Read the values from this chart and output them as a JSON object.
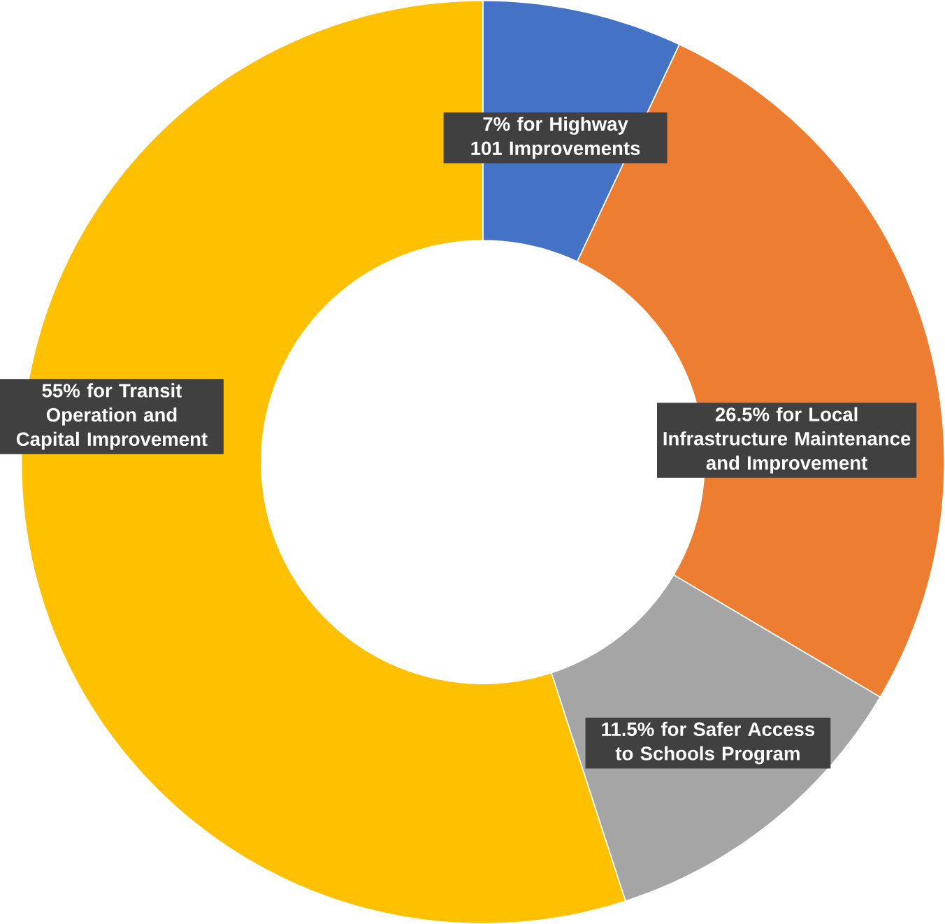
{
  "chart_data": {
    "type": "donut",
    "categories": [
      "for Highway 101 Improvements",
      "for Local Infrastructure Maintenance and Improvement",
      "for Safer Access to Schools Program",
      "for Transit Operation and Capital Improvement"
    ],
    "values": [
      7,
      26.5,
      11.5,
      55
    ],
    "value_labels": [
      "7%",
      "26.5%",
      "11.5%",
      "55%"
    ],
    "colors": [
      "#4472c4",
      "#ed7d31",
      "#a5a5a5",
      "#ffc000"
    ]
  }
}
